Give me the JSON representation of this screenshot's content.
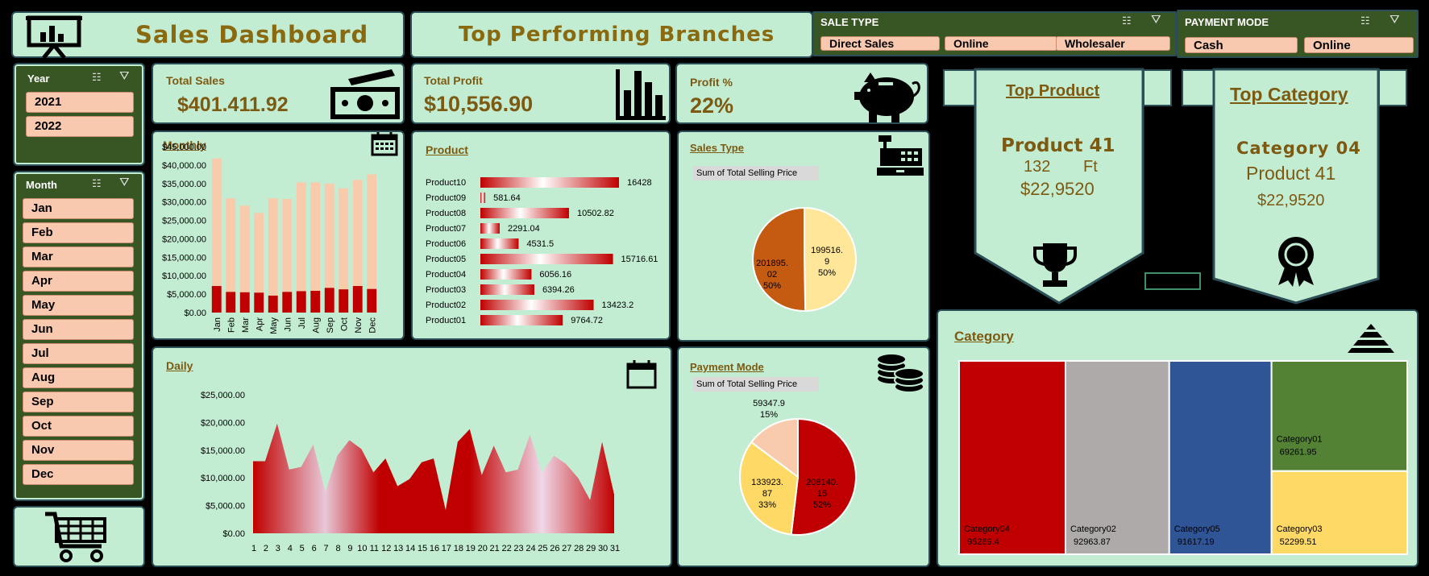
{
  "header": {
    "title": "Sales Dashboard",
    "subtitle": "Top Performing Branches"
  },
  "sale_type": {
    "label": "SALE TYPE",
    "options": [
      "Direct Sales",
      "Online",
      "Wholesaler"
    ]
  },
  "payment_mode": {
    "label": "PAYMENT MODE",
    "options": [
      "Cash",
      "Online"
    ]
  },
  "year": {
    "label": "Year",
    "options": [
      "2021",
      "2022"
    ]
  },
  "month": {
    "label": "Month",
    "options": [
      "Jan",
      "Feb",
      "Mar",
      "Apr",
      "May",
      "Jun",
      "Jul",
      "Aug",
      "Sep",
      "Oct",
      "Nov",
      "Dec"
    ]
  },
  "kpi": {
    "total_sales_label": "Total Sales",
    "total_sales_value": "$401.411.92",
    "total_profit_label": "Total Profit",
    "total_profit_value": "$10,556.90",
    "profit_pct_label": "Profit %",
    "profit_pct_value": "22%"
  },
  "top_product": {
    "label": "Top Product",
    "name": "Product 41",
    "qty": "132",
    "unit": "Ft",
    "value": "$22,9520"
  },
  "top_category": {
    "label": "Top Category",
    "name": "Category 04",
    "product": "Product 41",
    "value": "$22,9520"
  },
  "section_labels": {
    "monthly": "Monthly",
    "product": "Product",
    "sales_type_a": "Sales",
    "sales_type_b": " Type",
    "daily": "Daily",
    "payment_a": "Payment",
    "payment_b": " Mode",
    "category": "Category"
  },
  "colors": {
    "panel": "#c3edd3",
    "slicer_bg": "#375623",
    "button": "#f8c9ae",
    "accent_red": "#c00000",
    "gold": "#7d5a12"
  },
  "chart_data": [
    {
      "type": "bar",
      "id": "monthly",
      "categories": [
        "Jan",
        "Feb",
        "Mar",
        "Apr",
        "May",
        "Jun",
        "Jul",
        "Aug",
        "Sep",
        "Oct",
        "Nov",
        "Dec"
      ],
      "series": [
        {
          "values": [
            7200,
            5600,
            5500,
            5400,
            4600,
            5600,
            5800,
            5900,
            6700,
            6300,
            7200,
            6400
          ]
        },
        {
          "values": [
            41800,
            31000,
            29000,
            27000,
            31000,
            30800,
            35300,
            35300,
            35000,
            33700,
            36000,
            37500
          ]
        }
      ],
      "ylim": [
        0,
        45000
      ],
      "yticks": [
        "$0.00",
        "$5,000.00",
        "$10,000.00",
        "$15,000.00",
        "$20,000.00",
        "$25,000.00",
        "$30,000.00",
        "$35,000.00",
        "$40,000.00",
        "$45,000.00"
      ]
    },
    {
      "type": "bar",
      "id": "product",
      "orientation": "horizontal",
      "categories": [
        "Product10",
        "Product09",
        "Product08",
        "Product07",
        "Product06",
        "Product05",
        "Product04",
        "Product03",
        "Product02",
        "Product01"
      ],
      "values": [
        16428,
        581.64,
        10502.82,
        2291.04,
        4531.5,
        15716.61,
        6056.16,
        6394.26,
        13423.2,
        9764.72
      ],
      "labels": [
        "16428",
        "581.64",
        "10502.82",
        "2291.04",
        "4531.5",
        "15716.61",
        "6056.16",
        "6394.26",
        "13423.2",
        "9764.72"
      ]
    },
    {
      "type": "pie",
      "id": "sales_type",
      "legend": "Sum of Total Selling Price",
      "values": [
        199516.9,
        201895.02
      ],
      "labels": [
        [
          "199516.",
          "9",
          "50%"
        ],
        [
          "201895.",
          "02",
          "50%"
        ]
      ],
      "colors": [
        "#ffe699",
        "#c55a11"
      ]
    },
    {
      "type": "area",
      "id": "daily",
      "x": [
        1,
        2,
        3,
        4,
        5,
        6,
        7,
        8,
        9,
        10,
        11,
        12,
        13,
        14,
        15,
        16,
        17,
        18,
        19,
        20,
        21,
        22,
        23,
        24,
        25,
        26,
        27,
        28,
        29,
        30,
        31
      ],
      "values": [
        13000,
        13000,
        19800,
        11500,
        12000,
        16000,
        7500,
        14000,
        16800,
        15200,
        11000,
        13500,
        8500,
        9800,
        12800,
        13500,
        4200,
        16500,
        18800,
        10500,
        15800,
        11000,
        11500,
        17800,
        11000,
        14000,
        12500,
        10000,
        6000,
        16500,
        7000
      ],
      "ylim": [
        0,
        25000
      ],
      "yticks": [
        "$0.00",
        "$5,000.00",
        "$10,000.00",
        "$15,000.00",
        "$20,000.00",
        "$25,000.00"
      ]
    },
    {
      "type": "pie",
      "id": "payment_mode",
      "legend": "Sum of Total Selling Price",
      "values": [
        208140.15,
        133923.87,
        59347.9
      ],
      "labels": [
        [
          "208140.",
          "15",
          "52%"
        ],
        [
          "133923.",
          "87",
          "33%"
        ],
        [
          "59347.9",
          "15%"
        ]
      ],
      "colors": [
        "#c00000",
        "#ffd966",
        "#f8cbad"
      ]
    },
    {
      "type": "treemap",
      "id": "category",
      "categories": [
        "Category04",
        "Category02",
        "Category05",
        "Category01",
        "Category03"
      ],
      "values": [
        95269.4,
        92963.87,
        91617.19,
        69261.95,
        52299.51
      ],
      "labels": [
        "95269.4",
        "92963.87",
        "91617.19",
        "69261.95",
        "52299.51"
      ],
      "colors": [
        "#c00000",
        "#aeaaaa",
        "#2f5597",
        "#548235",
        "#ffd966"
      ]
    }
  ]
}
